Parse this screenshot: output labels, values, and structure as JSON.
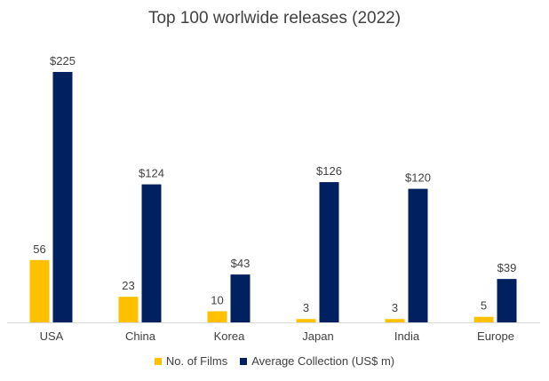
{
  "chart_data": {
    "type": "bar",
    "title": "Top 100 worlwide releases (2022)",
    "categories": [
      "USA",
      "China",
      "Korea",
      "Japan",
      "India",
      "Europe"
    ],
    "series": [
      {
        "name": "No. of Films",
        "values": [
          56,
          23,
          10,
          3,
          3,
          5
        ],
        "labels": [
          "56",
          "23",
          "10",
          "3",
          "3",
          "5"
        ],
        "color": "#FFC000"
      },
      {
        "name": "Average Collection (US$ m)",
        "values": [
          225,
          124,
          43,
          126,
          120,
          39
        ],
        "labels": [
          "$225",
          "$124",
          "$43",
          "$126",
          "$120",
          "$39"
        ],
        "color": "#002060"
      }
    ],
    "xlabel": "",
    "ylabel": "",
    "ylim": [
      0,
      225
    ],
    "grid": false,
    "legend": "bottom"
  }
}
